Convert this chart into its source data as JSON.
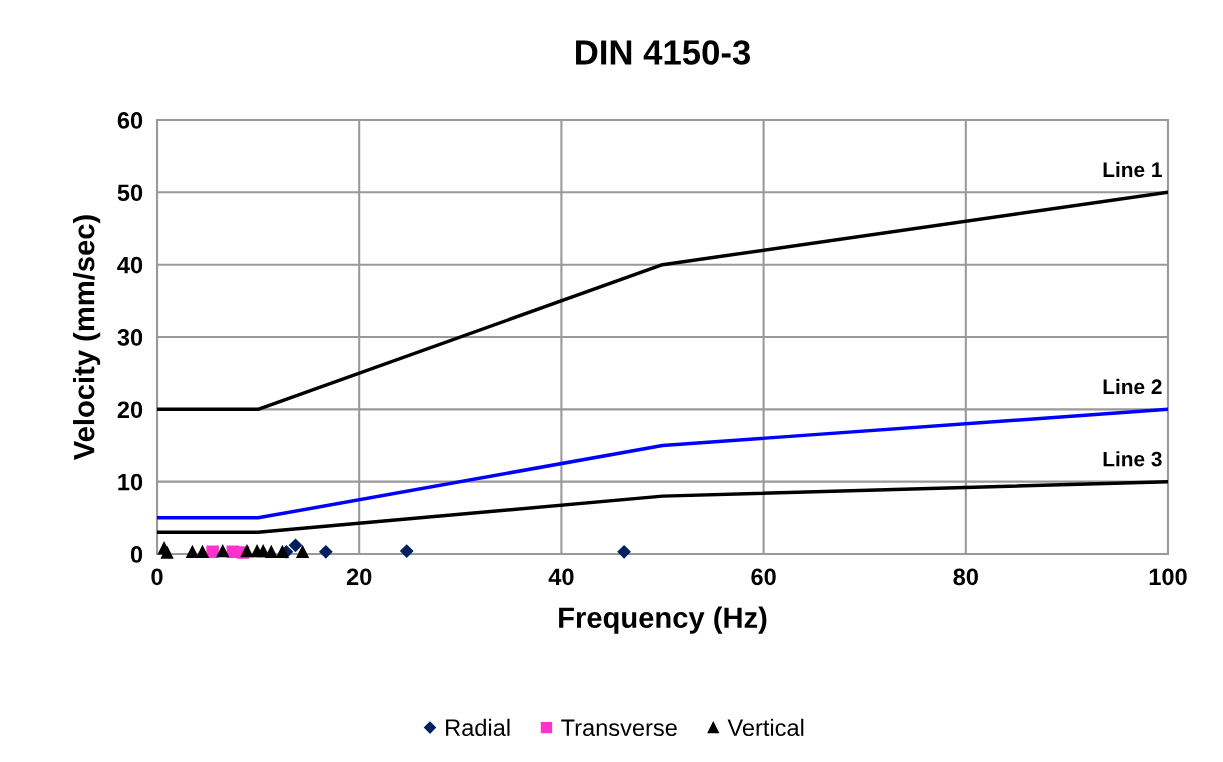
{
  "chart_data": {
    "type": "scatter",
    "title": "DIN 4150-3",
    "xlabel": "Frequency (Hz)",
    "ylabel": "Velocity (mm/sec)",
    "xlim": [
      0,
      100
    ],
    "xticks": [
      0,
      20,
      40,
      60,
      80,
      100
    ],
    "ylim": [
      0,
      60
    ],
    "yticks": [
      0,
      10,
      20,
      30,
      40,
      50,
      60
    ],
    "grid": true,
    "legend": "bottom",
    "series": [
      {
        "name": "Line 1",
        "type": "line",
        "color": "#000000",
        "marker": "none",
        "x": [
          0,
          10,
          50,
          100
        ],
        "values": [
          20,
          20,
          40,
          50
        ]
      },
      {
        "name": "Line 2",
        "type": "line",
        "color": "#0000ff",
        "marker": "none",
        "x": [
          0,
          10,
          50,
          100
        ],
        "values": [
          5,
          5,
          15,
          20
        ]
      },
      {
        "name": "Line 3",
        "type": "line",
        "color": "#000000",
        "marker": "none",
        "x": [
          0,
          10,
          50,
          100
        ],
        "values": [
          3,
          3,
          8,
          10
        ]
      },
      {
        "name": "Radial",
        "color": "#002060",
        "marker": "diamond",
        "x": [
          12.8,
          13.7,
          16.7,
          24.7,
          46.2
        ],
        "values": [
          0.3,
          1.2,
          0.3,
          0.4,
          0.3
        ]
      },
      {
        "name": "Transverse",
        "color": "#ff33cc",
        "marker": "square",
        "x": [
          5.5,
          7.5,
          8.5
        ],
        "values": [
          0.3,
          0.3,
          0.2
        ]
      },
      {
        "name": "Vertical",
        "color": "#000000",
        "marker": "triangle",
        "x": [
          0.7,
          1.0,
          3.5,
          4.5,
          6.5,
          8.9,
          9.9,
          10.5,
          11.3,
          12.4,
          14.4
        ],
        "values": [
          0.8,
          0.2,
          0.3,
          0.3,
          0.4,
          0.4,
          0.4,
          0.4,
          0.3,
          0.3,
          0.3
        ]
      }
    ]
  }
}
